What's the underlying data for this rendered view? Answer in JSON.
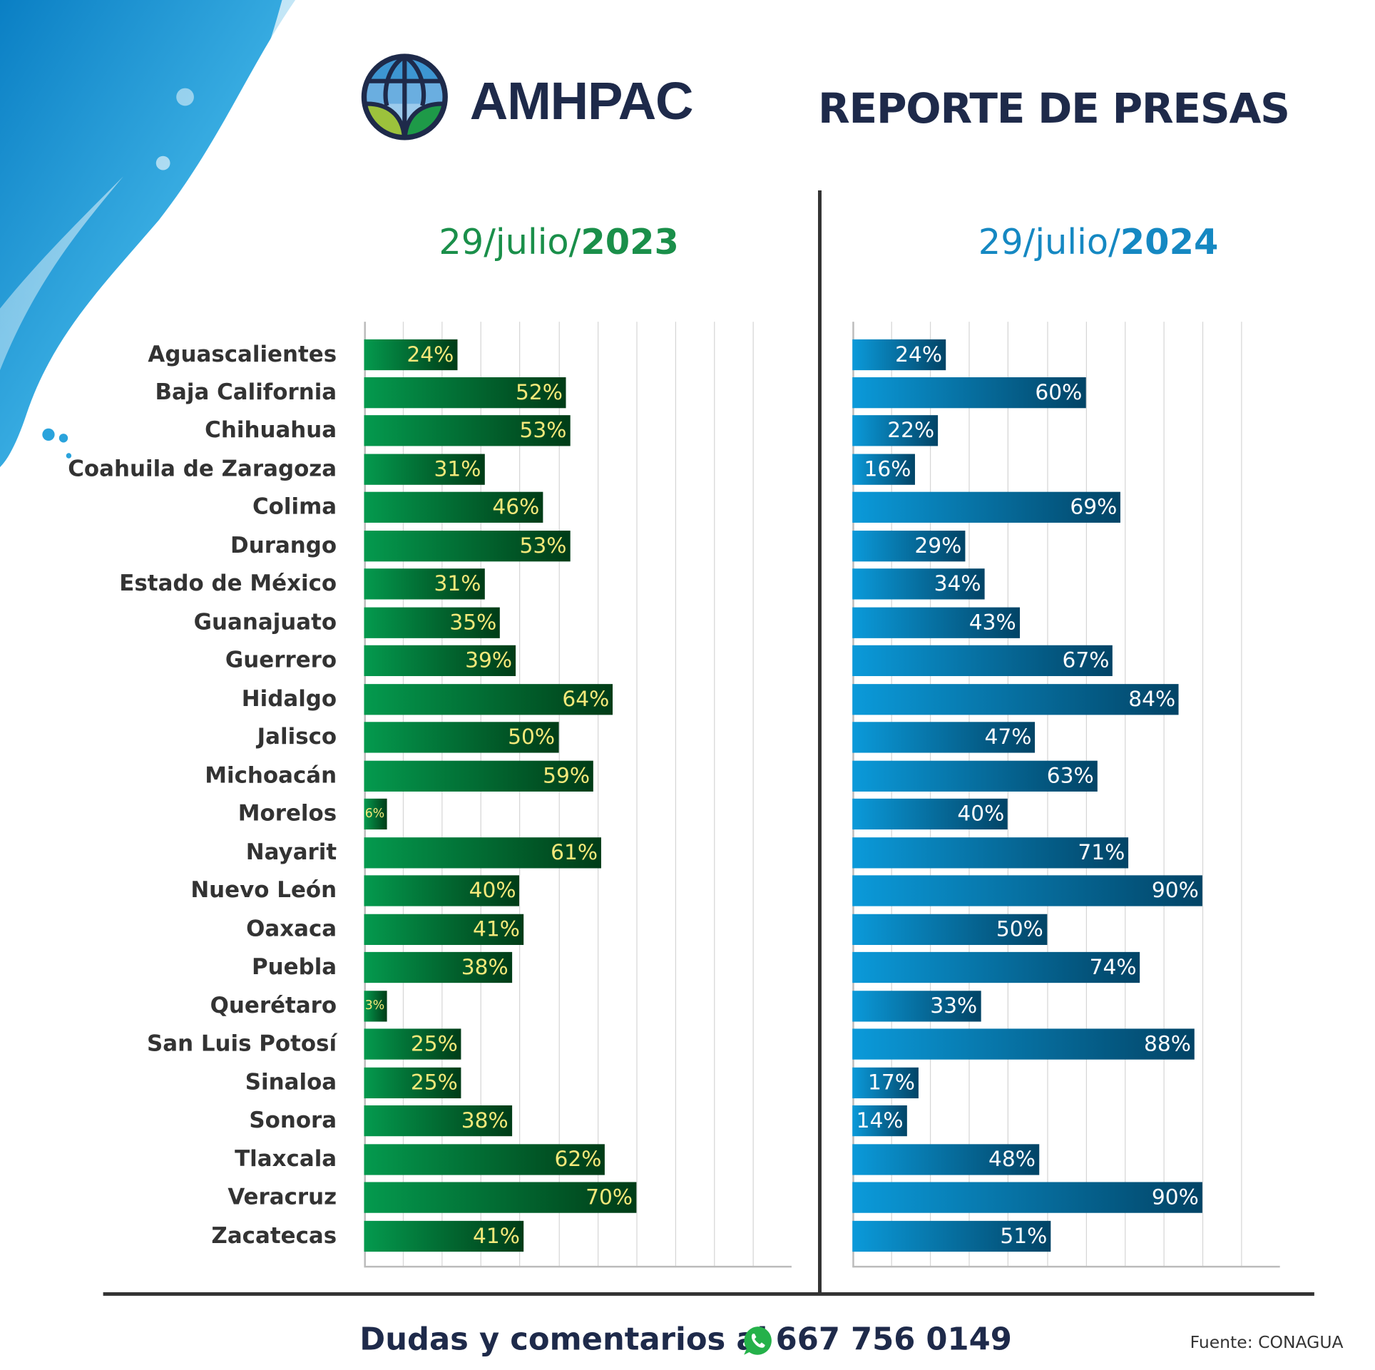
{
  "header": {
    "brand": "AMHPAC",
    "title": "REPORTE DE PRESAS"
  },
  "colors": {
    "navy": "#1e2a4a",
    "green": "#1a8f4a",
    "blue": "#1588c2",
    "green_label": "#f5e97a",
    "blue_label": "#ffffff"
  },
  "chart_data": [
    {
      "type": "bar",
      "orientation": "horizontal",
      "title_prefix": "29/julio/",
      "title_year": "2023",
      "categories": [
        "Aguascalientes",
        "Baja California",
        "Chihuahua",
        "Coahuila de Zaragoza",
        "Colima",
        "Durango",
        "Estado de México",
        "Guanajuato",
        "Guerrero",
        "Hidalgo",
        "Jalisco",
        "Michoacán",
        "Morelos",
        "Nayarit",
        "Nuevo León",
        "Oaxaca",
        "Puebla",
        "Querétaro",
        "San Luis Potosí",
        "Sinaloa",
        "Sonora",
        "Tlaxcala",
        "Veracruz",
        "Zacatecas"
      ],
      "values": [
        24,
        52,
        53,
        31,
        46,
        53,
        31,
        35,
        39,
        64,
        50,
        59,
        6,
        61,
        40,
        41,
        38,
        3,
        25,
        25,
        38,
        62,
        70,
        41
      ],
      "unit": "%",
      "xlim": [
        0,
        110
      ],
      "grid": true,
      "color": "#1a8f4a"
    },
    {
      "type": "bar",
      "orientation": "horizontal",
      "title_prefix": "29/julio/",
      "title_year": "2024",
      "categories": [
        "Aguascalientes",
        "Baja California",
        "Chihuahua",
        "Coahuila de Zaragoza",
        "Colima",
        "Durango",
        "Estado de México",
        "Guanajuato",
        "Guerrero",
        "Hidalgo",
        "Jalisco",
        "Michoacán",
        "Morelos",
        "Nayarit",
        "Nuevo León",
        "Oaxaca",
        "Puebla",
        "Querétaro",
        "San Luis Potosí",
        "Sinaloa",
        "Sonora",
        "Tlaxcala",
        "Veracruz",
        "Zacatecas"
      ],
      "values": [
        24,
        60,
        22,
        16,
        69,
        29,
        34,
        43,
        67,
        84,
        47,
        63,
        40,
        71,
        90,
        50,
        74,
        33,
        88,
        17,
        14,
        48,
        90,
        51
      ],
      "unit": "%",
      "xlim": [
        0,
        110
      ],
      "grid": true,
      "color": "#1588c2"
    }
  ],
  "footer": {
    "contact_text": "Dudas y comentarios al",
    "phone": "667 756 0149",
    "contact_icon": "whatsapp-icon",
    "source": "Fuente: CONAGUA"
  }
}
